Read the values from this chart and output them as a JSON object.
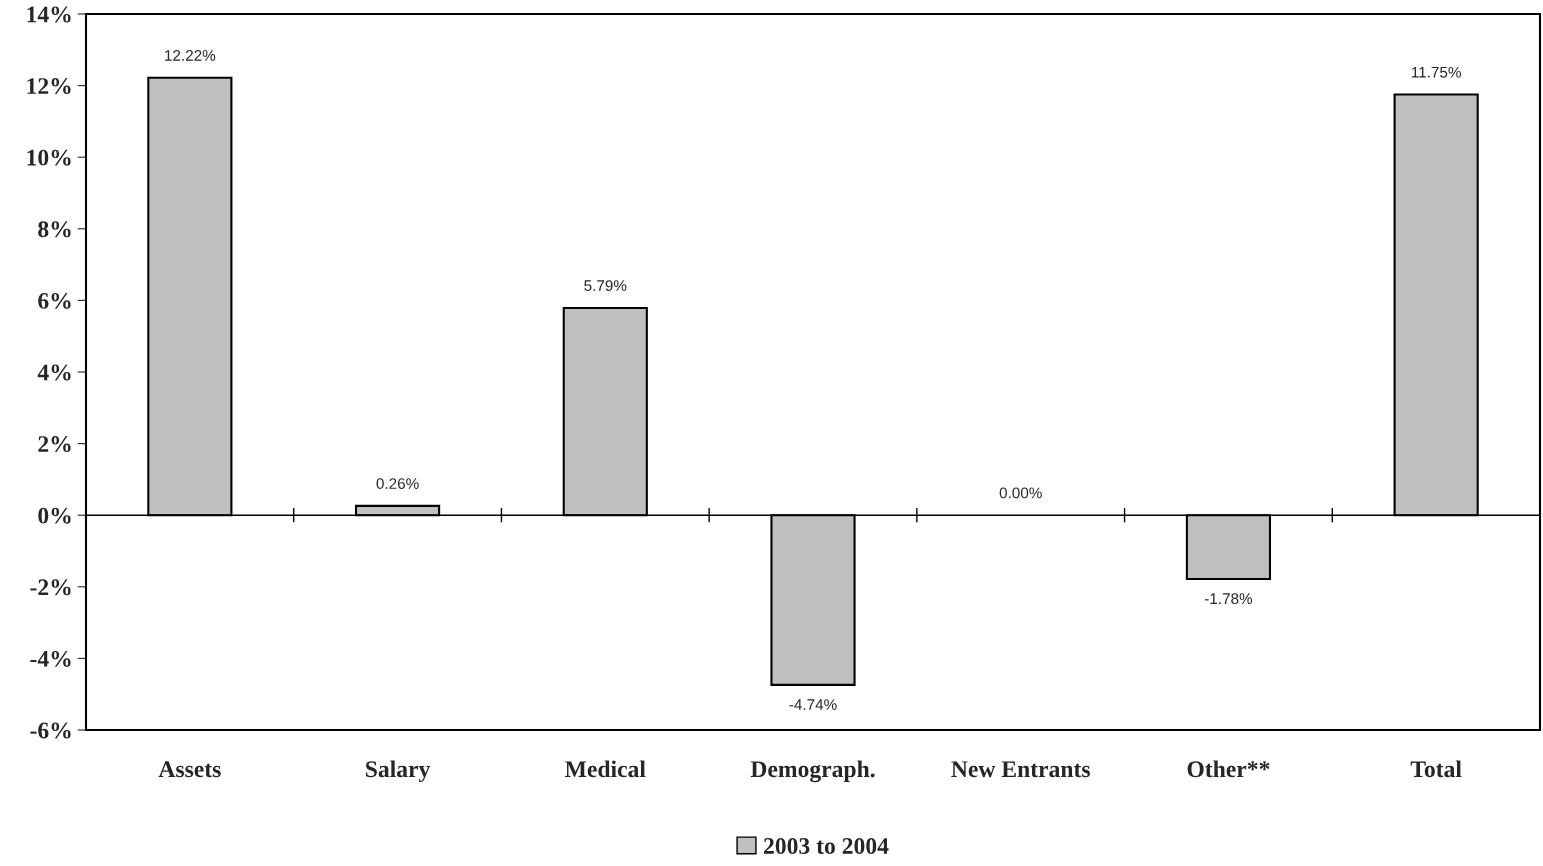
{
  "chart_data": {
    "type": "bar",
    "categories": [
      "Assets",
      "Salary",
      "Medical",
      "Demograph.",
      "New Entrants",
      "Other**",
      "Total"
    ],
    "series": [
      {
        "name": "2003 to 2004",
        "color": "#c0c0c0",
        "values": [
          12.22,
          0.26,
          5.79,
          -4.74,
          0.0,
          -1.78,
          11.75
        ],
        "value_labels": [
          "12.22%",
          "0.26%",
          "5.79%",
          "-4.74%",
          "0.00%",
          "-1.78%",
          "11.75%"
        ]
      }
    ],
    "ylim": [
      -6,
      14
    ],
    "yticks": [
      {
        "value": -6,
        "label": "-6%"
      },
      {
        "value": -4,
        "label": "-4%"
      },
      {
        "value": -2,
        "label": "-2%"
      },
      {
        "value": 0,
        "label": "0%"
      },
      {
        "value": 2,
        "label": "2%"
      },
      {
        "value": 4,
        "label": "4%"
      },
      {
        "value": 6,
        "label": "6%"
      },
      {
        "value": 8,
        "label": "8%"
      },
      {
        "value": 10,
        "label": "10%"
      },
      {
        "value": 12,
        "label": "12%"
      },
      {
        "value": 14,
        "label": "14%"
      }
    ],
    "grid": false,
    "ref_lines": [
      {
        "axis": "y",
        "value": 0,
        "color": "#000000"
      }
    ],
    "legend": "bottom"
  }
}
